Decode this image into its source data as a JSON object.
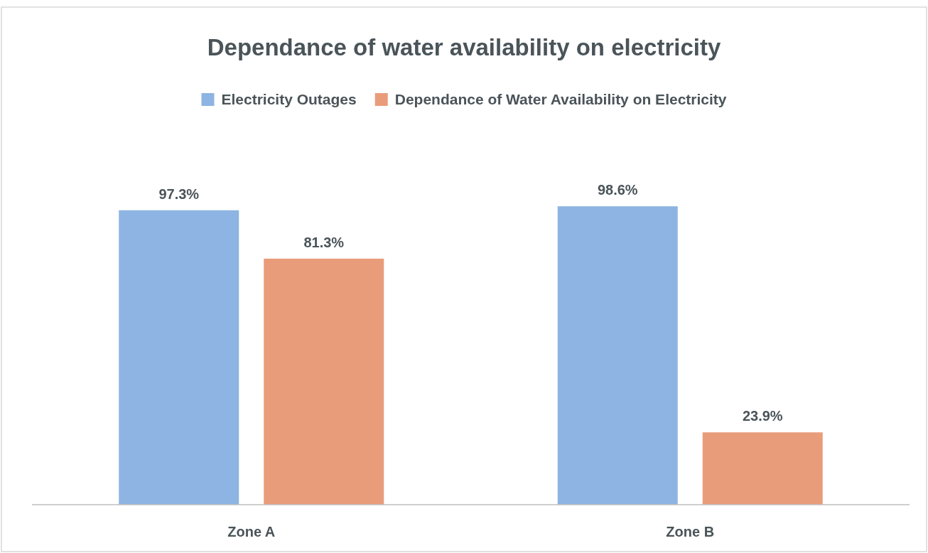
{
  "chart_data": {
    "type": "bar",
    "title": "Dependance of water availability on electricity",
    "categories": [
      "Zone A",
      "Zone B"
    ],
    "series": [
      {
        "name": "Electricity Outages",
        "color": "#8db4e2",
        "values": [
          97.3,
          98.6
        ],
        "value_labels": [
          "97.3%",
          "98.6%"
        ]
      },
      {
        "name": "Dependance of Water Availability on Electricity",
        "color": "#e99c7a",
        "values": [
          81.3,
          23.9
        ],
        "value_labels": [
          "81.3%",
          "23.9%"
        ]
      }
    ],
    "legend": "top"
  }
}
